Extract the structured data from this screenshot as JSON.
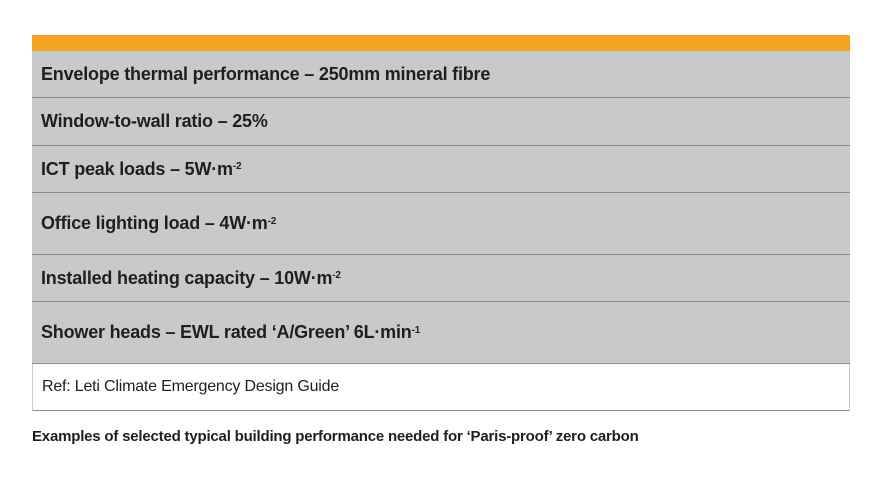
{
  "rows": [
    {
      "text": "Envelope thermal performance – 250mm mineral fibre",
      "sup": ""
    },
    {
      "text": "Window-to-wall ratio – 25%",
      "sup": ""
    },
    {
      "text": "ICT peak loads – 5W·m",
      "sup": "-2"
    },
    {
      "text": "Office lighting load – 4W·m",
      "sup": "-2"
    },
    {
      "text": "Installed heating capacity – 10W·m",
      "sup": "-2"
    },
    {
      "text": "Shower heads – EWL rated ‘A/Green’ 6L·min",
      "sup": "-1"
    }
  ],
  "reference": "Ref: Leti Climate Emergency Design Guide",
  "caption": "Examples of selected typical building performance needed for ‘Paris-proof’ zero carbon",
  "colors": {
    "accent": "#f5a421",
    "row_bg": "#c8c9cb"
  }
}
